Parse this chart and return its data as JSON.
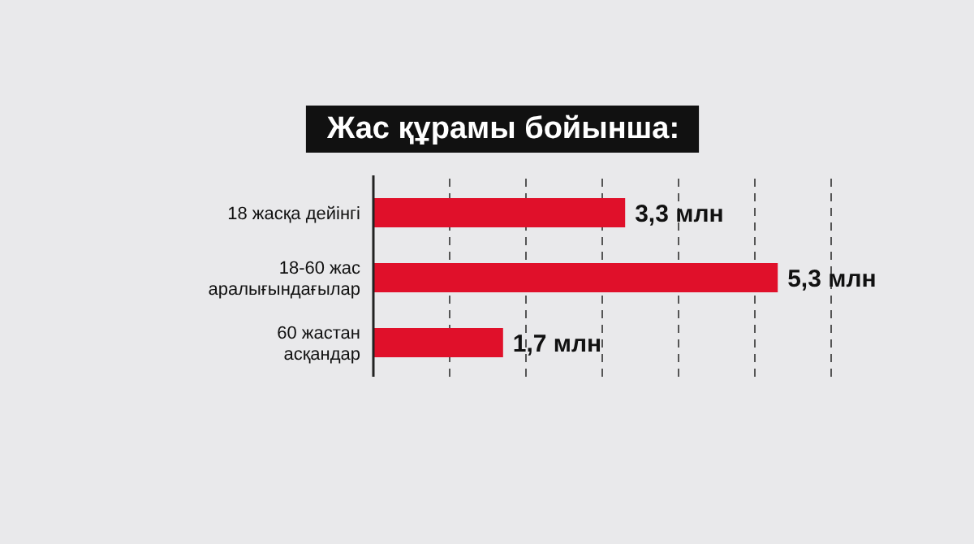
{
  "chart_data": {
    "type": "bar",
    "orientation": "horizontal",
    "title": "Жас құрамы бойынша:",
    "categories": [
      "18 жасқа дейінгі",
      "18-60 жас аралығындағылар",
      "60 жастан асқандар"
    ],
    "values": [
      3.3,
      5.3,
      1.7
    ],
    "color": "#e0102a",
    "value_labels": [
      "3,3 млн",
      "5,3 млн",
      "1,7 млн"
    ],
    "xlim": [
      0,
      6
    ],
    "xticks": [
      {
        "value": 1,
        "label": null
      },
      {
        "value": 2,
        "label": null
      },
      {
        "value": 3,
        "label": null
      },
      {
        "value": 4,
        "label": null
      },
      {
        "value": 5,
        "label": null
      },
      {
        "value": 6,
        "label": null
      }
    ],
    "grid": "x",
    "tick_labels": "y"
  }
}
